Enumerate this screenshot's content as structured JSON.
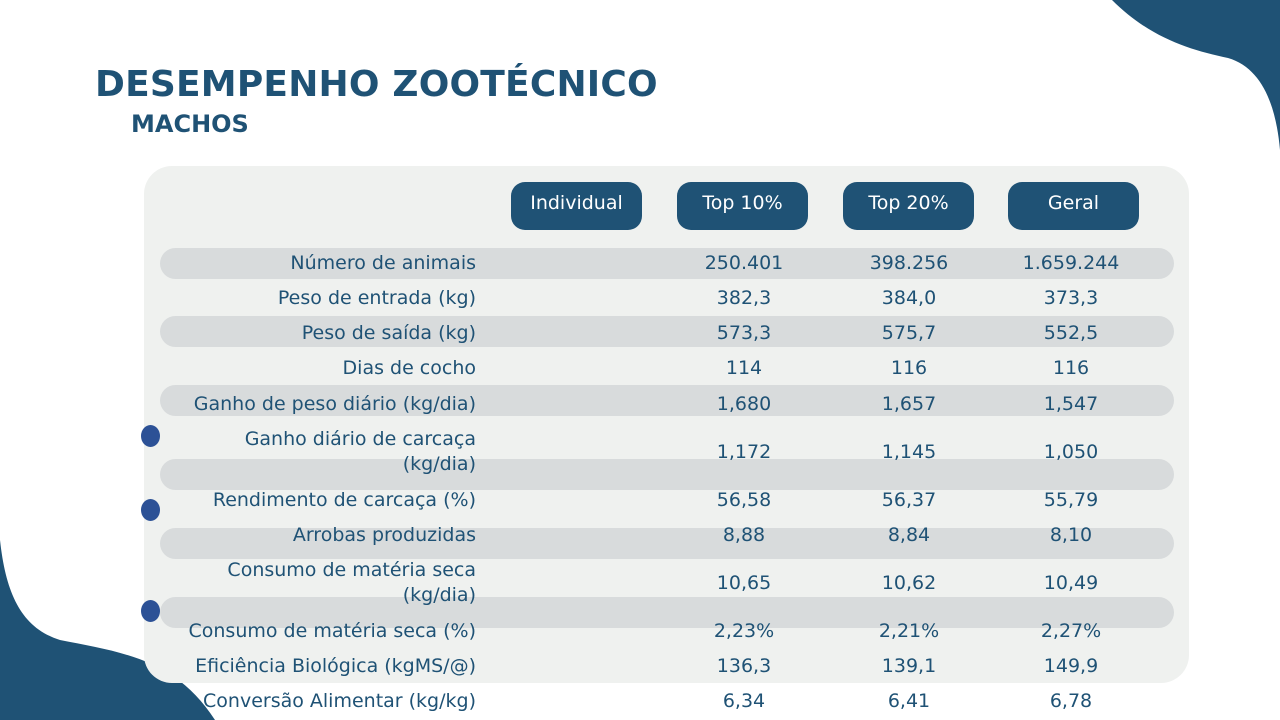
{
  "page": {
    "title": "DESEMPENHO ZOOTÉCNICO",
    "subtitle": "MACHOS"
  },
  "colors": {
    "primary": "#1f5275",
    "panel": "#eff1ef",
    "stripe": "#d8dbdc",
    "bullet": "#2c5196"
  },
  "table": {
    "headers": [
      "Individual",
      "Top 10%",
      "Top 20%",
      "Geral"
    ],
    "rows": [
      {
        "label": "Número de animais",
        "individual": "",
        "top10": "250.401",
        "top20": "398.256",
        "geral": "1.659.244"
      },
      {
        "label": "Peso de entrada (kg)",
        "individual": "",
        "top10": "382,3",
        "top20": "384,0",
        "geral": "373,3"
      },
      {
        "label": "Peso de saída (kg)",
        "individual": "",
        "top10": "573,3",
        "top20": "575,7",
        "geral": "552,5"
      },
      {
        "label": "Dias de cocho",
        "individual": "",
        "top10": "114",
        "top20": "116",
        "geral": "116"
      },
      {
        "label": "Ganho de peso diário (kg/dia)",
        "individual": "",
        "top10": "1,680",
        "top20": "1,657",
        "geral": "1,547"
      },
      {
        "label": "Ganho diário de carcaça (kg/dia)",
        "individual": "",
        "top10": "1,172",
        "top20": "1,145",
        "geral": "1,050"
      },
      {
        "label": "Rendimento de carcaça (%)",
        "individual": "",
        "top10": "56,58",
        "top20": "56,37",
        "geral": "55,79"
      },
      {
        "label": "Arrobas produzidas",
        "individual": "",
        "top10": "8,88",
        "top20": "8,84",
        "geral": "8,10"
      },
      {
        "label": "Consumo de matéria seca (kg/dia)",
        "individual": "",
        "top10": "10,65",
        "top20": "10,62",
        "geral": "10,49"
      },
      {
        "label": "Consumo de matéria seca (%)",
        "individual": "",
        "top10": "2,23%",
        "top20": "2,21%",
        "geral": "2,27%"
      },
      {
        "label": "Eficiência Biológica (kgMS/@)",
        "individual": "",
        "top10": "136,3",
        "top20": "139,1",
        "geral": "149,9"
      },
      {
        "label": "Conversão Alimentar (kg/kg)",
        "individual": "",
        "top10": "6,34",
        "top20": "6,41",
        "geral": "6,78"
      }
    ]
  }
}
